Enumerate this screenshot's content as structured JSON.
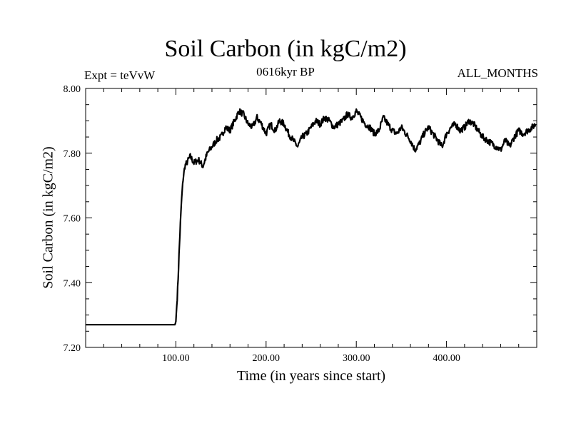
{
  "chart_data": {
    "type": "line",
    "title": "Soil Carbon (in kgC/m2)",
    "subtitle": "0616kyr BP",
    "annotation_left": "Expt = teVvW",
    "annotation_right": "ALL_MONTHS",
    "xlabel": "Time (in years since start)",
    "ylabel": "Soil Carbon (in kgC/m2)",
    "xlim": [
      0,
      500
    ],
    "ylim": [
      7.2,
      8.0
    ],
    "xticks": [
      100,
      200,
      300,
      400
    ],
    "xtick_labels": [
      "100.00",
      "200.00",
      "300.00",
      "400.00"
    ],
    "yticks": [
      7.2,
      7.4,
      7.6,
      7.8,
      8.0
    ],
    "ytick_labels": [
      "7.20",
      "7.40",
      "7.60",
      "7.80",
      "8.00"
    ],
    "series": [
      {
        "name": "Soil Carbon",
        "color": "#000000",
        "x": [
          0,
          99,
          100,
          102,
          104,
          106,
          108,
          110,
          112,
          114,
          116,
          118,
          120,
          125,
          130,
          135,
          140,
          145,
          150,
          155,
          160,
          165,
          170,
          175,
          180,
          185,
          190,
          195,
          200,
          205,
          210,
          215,
          220,
          225,
          230,
          235,
          240,
          245,
          250,
          255,
          260,
          265,
          270,
          275,
          280,
          285,
          290,
          295,
          300,
          305,
          310,
          315,
          320,
          325,
          330,
          335,
          340,
          345,
          350,
          355,
          360,
          365,
          370,
          375,
          380,
          385,
          390,
          395,
          400,
          405,
          410,
          415,
          420,
          425,
          430,
          435,
          440,
          445,
          450,
          455,
          460,
          465,
          470,
          475,
          480,
          485,
          490,
          495,
          499
        ],
        "y": [
          7.27,
          7.27,
          7.28,
          7.38,
          7.52,
          7.64,
          7.72,
          7.76,
          7.77,
          7.78,
          7.79,
          7.78,
          7.77,
          7.78,
          7.76,
          7.8,
          7.82,
          7.84,
          7.85,
          7.88,
          7.87,
          7.9,
          7.93,
          7.92,
          7.89,
          7.88,
          7.91,
          7.89,
          7.86,
          7.89,
          7.87,
          7.9,
          7.89,
          7.86,
          7.84,
          7.82,
          7.85,
          7.86,
          7.88,
          7.9,
          7.89,
          7.91,
          7.9,
          7.88,
          7.89,
          7.9,
          7.92,
          7.91,
          7.93,
          7.91,
          7.89,
          7.88,
          7.86,
          7.87,
          7.91,
          7.89,
          7.87,
          7.86,
          7.88,
          7.86,
          7.84,
          7.81,
          7.83,
          7.86,
          7.88,
          7.86,
          7.84,
          7.82,
          7.86,
          7.88,
          7.89,
          7.87,
          7.88,
          7.9,
          7.89,
          7.87,
          7.85,
          7.84,
          7.83,
          7.82,
          7.81,
          7.84,
          7.82,
          7.85,
          7.87,
          7.86,
          7.87,
          7.88,
          7.89
        ]
      }
    ]
  }
}
